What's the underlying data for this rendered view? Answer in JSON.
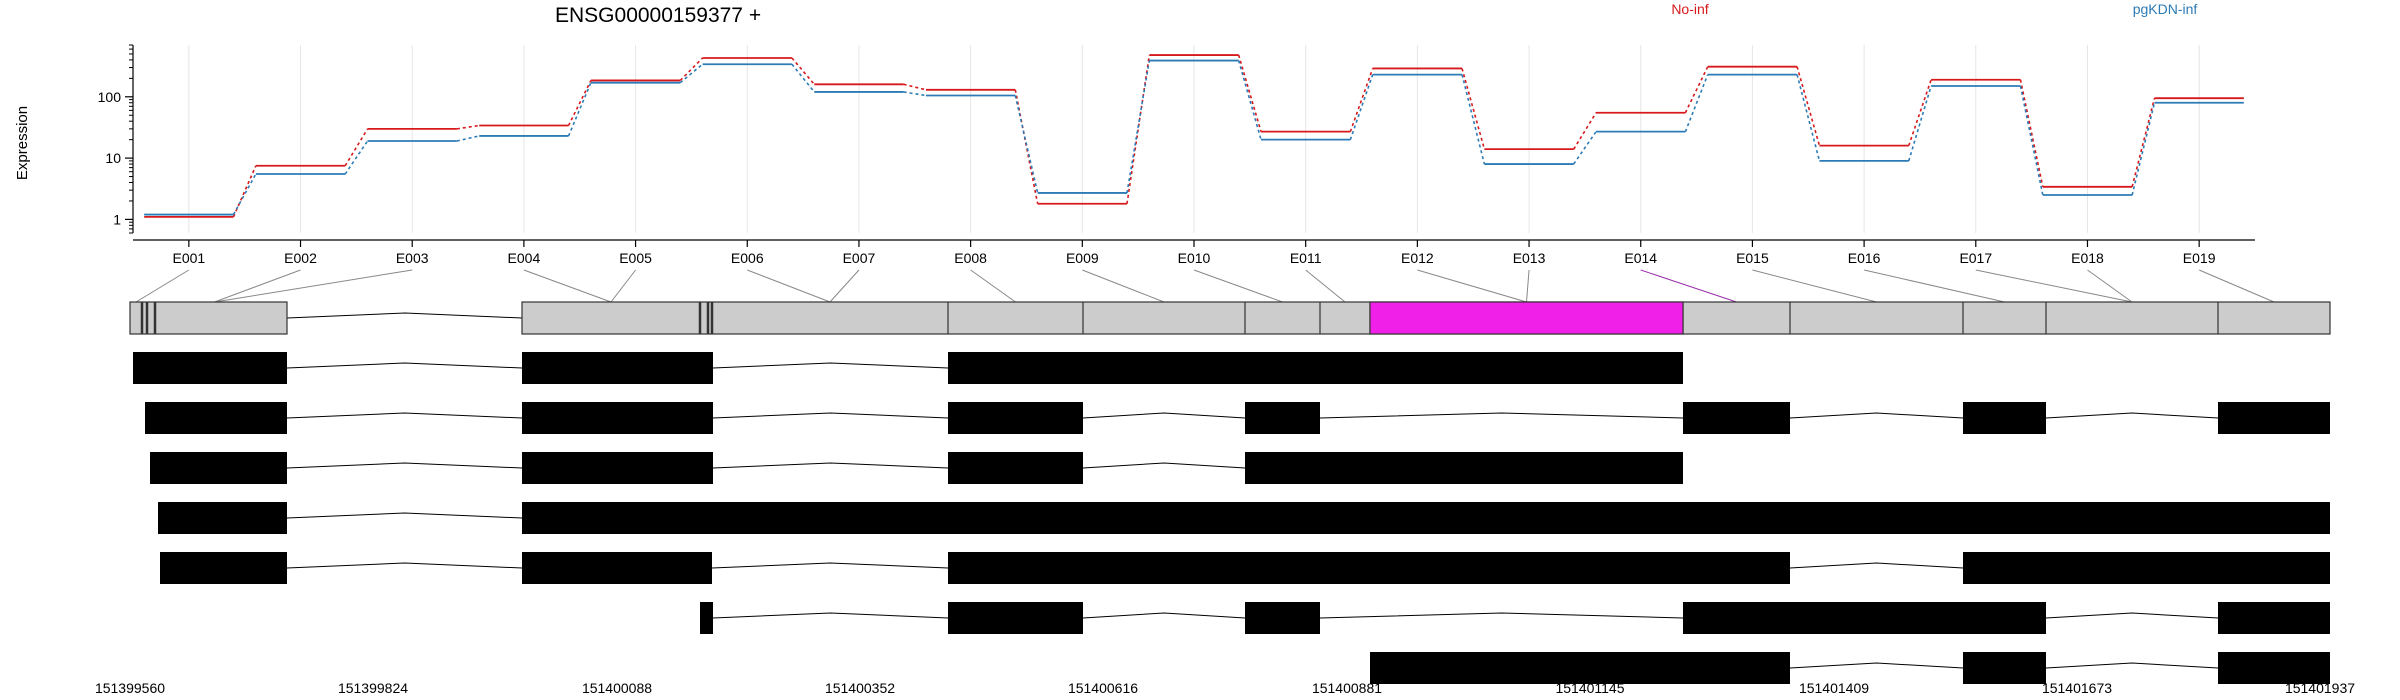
{
  "chart_data": {
    "type": "line",
    "title": "ENSG00000159377 +",
    "ylabel": "Expression",
    "xlabel": "",
    "y_scale": "log10",
    "ylim": [
      0.6,
      700
    ],
    "y_ticks": [
      1,
      10,
      100
    ],
    "y_tick_labels": [
      "1",
      "10",
      "100"
    ],
    "grid": true,
    "legend_placement": "top",
    "categories": [
      "E001",
      "E002",
      "E003",
      "E004",
      "E005",
      "E006",
      "E007",
      "E008",
      "E009",
      "E010",
      "E011",
      "E012",
      "E013",
      "E014",
      "E015",
      "E016",
      "E017",
      "E018",
      "E019"
    ],
    "series": [
      {
        "name": "No-inf",
        "color": "#d7191c",
        "values": [
          1.1,
          7.5,
          30,
          34,
          185,
          430,
          160,
          130,
          1.8,
          480,
          27,
          290,
          14,
          55,
          310,
          16,
          190,
          3.4,
          95
        ]
      },
      {
        "name": "pgKDN-inf",
        "color": "#2c7bb6",
        "values": [
          1.2,
          5.5,
          19,
          23,
          170,
          340,
          120,
          105,
          2.7,
          390,
          20,
          230,
          8,
          27,
          230,
          9,
          150,
          2.5,
          80
        ]
      }
    ],
    "genomic_ticks": [
      "151399560",
      "151399824",
      "151400088",
      "151400352",
      "151400616",
      "151400881",
      "151401145",
      "151401409",
      "151401673",
      "151401937"
    ],
    "gene_model": {
      "highlight_color": "#f020e8",
      "highlighted_exon": "E014"
    }
  }
}
